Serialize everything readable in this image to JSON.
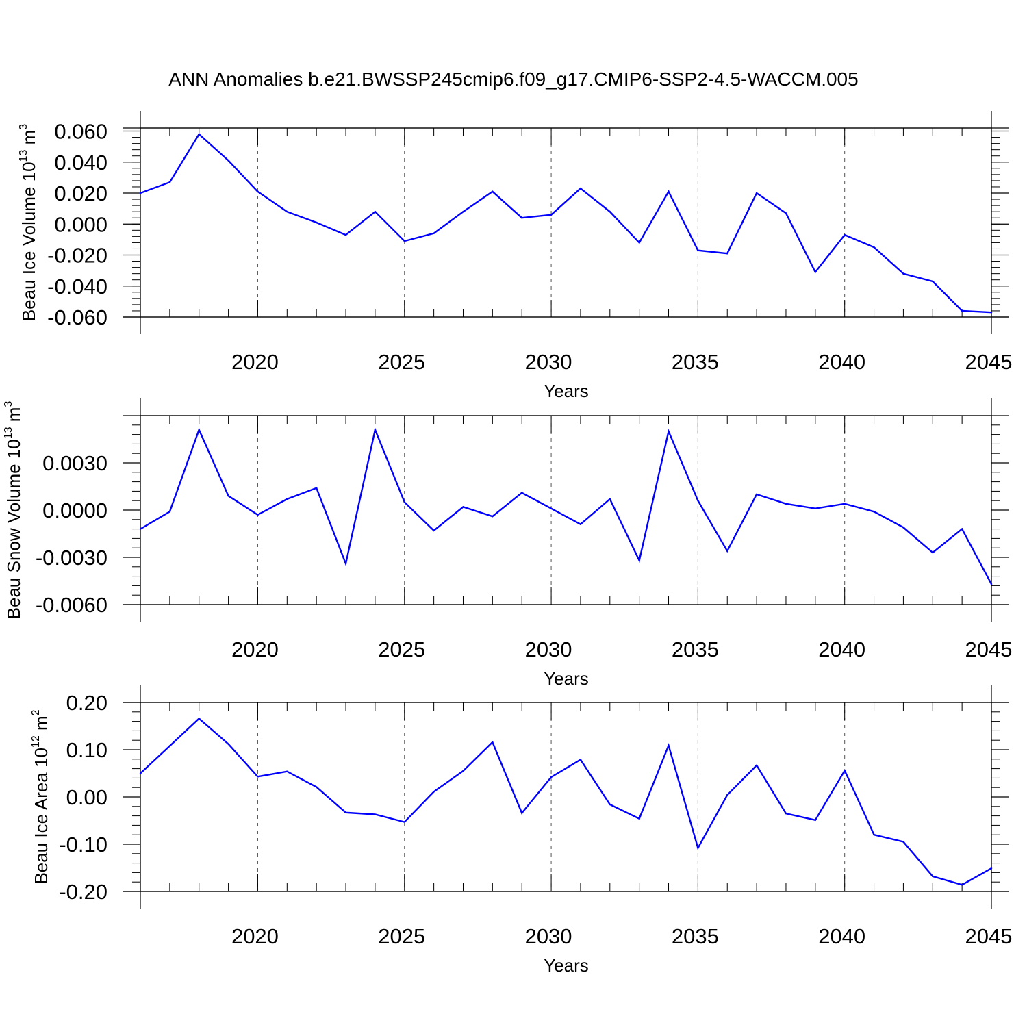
{
  "title": "ANN Anomalies b.e21.BWSSP245cmip6.f09_g17.CMIP6-SSP2-4.5-WACCM.005",
  "colors": {
    "line": "#0000ff",
    "axis": "#000000",
    "grid": "#555555",
    "background": "#ffffff"
  },
  "chart_data": [
    {
      "type": "line",
      "ylabel": "Beau Ice Volume 10",
      "ylabel_exp": "13",
      "ylabel_unit": " m",
      "ylabel_unit_exp": "3",
      "xlabel": "Years",
      "xlim": [
        2016,
        2045
      ],
      "ylim": [
        -0.06,
        0.062
      ],
      "yticks": [
        -0.06,
        -0.04,
        -0.02,
        0.0,
        0.02,
        0.04,
        0.06
      ],
      "ytick_labels": [
        "-0.060",
        "-0.040",
        "-0.020",
        "0.000",
        "0.020",
        "0.040",
        "0.060"
      ],
      "xticks": [
        2020,
        2025,
        2030,
        2035,
        2040,
        2045
      ],
      "xtick_labels": [
        "2020",
        "2025",
        "2030",
        "2035",
        "2040",
        "2045"
      ],
      "grid_x": [
        2020,
        2025,
        2030,
        2035,
        2040
      ],
      "series": [
        {
          "name": "Beau Ice Volume",
          "x": [
            2016,
            2017,
            2018,
            2019,
            2020,
            2021,
            2022,
            2023,
            2024,
            2025,
            2026,
            2027,
            2028,
            2029,
            2030,
            2031,
            2032,
            2033,
            2034,
            2035,
            2036,
            2037,
            2038,
            2039,
            2040,
            2041,
            2042,
            2043,
            2044,
            2045
          ],
          "values": [
            0.02,
            0.027,
            0.058,
            0.041,
            0.021,
            0.008,
            0.001,
            -0.007,
            0.008,
            -0.011,
            -0.006,
            0.008,
            0.021,
            0.004,
            0.006,
            0.023,
            0.008,
            -0.012,
            0.021,
            -0.017,
            -0.019,
            0.02,
            0.007,
            -0.031,
            -0.007,
            -0.015,
            -0.032,
            -0.037,
            -0.056,
            -0.057
          ]
        }
      ]
    },
    {
      "type": "line",
      "ylabel": "Beau Snow Volume 10",
      "ylabel_exp": "13",
      "ylabel_unit": " m",
      "ylabel_unit_exp": "3",
      "xlabel": "Years",
      "xlim": [
        2016,
        2045
      ],
      "ylim": [
        -0.006,
        0.006
      ],
      "yticks": [
        -0.006,
        -0.003,
        0.0,
        0.003
      ],
      "ytick_labels": [
        "-0.0060",
        "-0.0030",
        "0.0000",
        "0.0030"
      ],
      "xticks": [
        2020,
        2025,
        2030,
        2035,
        2040,
        2045
      ],
      "xtick_labels": [
        "2020",
        "2025",
        "2030",
        "2035",
        "2040",
        "2045"
      ],
      "grid_x": [
        2020,
        2025,
        2030,
        2035,
        2040
      ],
      "series": [
        {
          "name": "Beau Snow Volume",
          "x": [
            2016,
            2017,
            2018,
            2019,
            2020,
            2021,
            2022,
            2023,
            2024,
            2025,
            2026,
            2027,
            2028,
            2029,
            2030,
            2031,
            2032,
            2033,
            2034,
            2035,
            2036,
            2037,
            2038,
            2039,
            2040,
            2041,
            2042,
            2043,
            2044,
            2045
          ],
          "values": [
            -0.0012,
            -0.0001,
            0.0051,
            0.0009,
            -0.0003,
            0.0007,
            0.0014,
            -0.0034,
            0.0051,
            0.0005,
            -0.0013,
            0.0002,
            -0.0004,
            0.0011,
            0.0001,
            -0.0009,
            0.0007,
            -0.0032,
            0.005,
            0.0006,
            -0.0026,
            0.001,
            0.0004,
            0.0001,
            0.0004,
            -0.0001,
            -0.0011,
            -0.0027,
            -0.0012,
            -0.0047
          ]
        }
      ]
    },
    {
      "type": "line",
      "ylabel": "Beau Ice Area 10",
      "ylabel_exp": "12",
      "ylabel_unit": " m",
      "ylabel_unit_exp": "2",
      "xlabel": "Years",
      "xlim": [
        2016,
        2045
      ],
      "ylim": [
        -0.2,
        0.2
      ],
      "yticks": [
        -0.2,
        -0.1,
        0.0,
        0.1,
        0.2
      ],
      "ytick_labels": [
        "-0.20",
        "-0.10",
        "0.00",
        "0.10",
        "0.20"
      ],
      "xticks": [
        2020,
        2025,
        2030,
        2035,
        2040,
        2045
      ],
      "xtick_labels": [
        "2020",
        "2025",
        "2030",
        "2035",
        "2040",
        "2045"
      ],
      "grid_x": [
        2020,
        2025,
        2030,
        2035,
        2040
      ],
      "series": [
        {
          "name": "Beau Ice Area",
          "x": [
            2016,
            2017,
            2018,
            2019,
            2020,
            2021,
            2022,
            2023,
            2024,
            2025,
            2026,
            2027,
            2028,
            2029,
            2030,
            2031,
            2032,
            2033,
            2034,
            2035,
            2036,
            2037,
            2038,
            2039,
            2040,
            2041,
            2042,
            2043,
            2044,
            2045
          ],
          "values": [
            0.05,
            0.108,
            0.166,
            0.112,
            0.043,
            0.054,
            0.021,
            -0.033,
            -0.037,
            -0.053,
            0.011,
            0.055,
            0.116,
            -0.034,
            0.042,
            0.079,
            -0.016,
            -0.046,
            0.109,
            -0.108,
            0.004,
            0.067,
            -0.035,
            -0.049,
            0.056,
            -0.08,
            -0.095,
            -0.168,
            -0.186,
            -0.151
          ]
        }
      ]
    }
  ]
}
